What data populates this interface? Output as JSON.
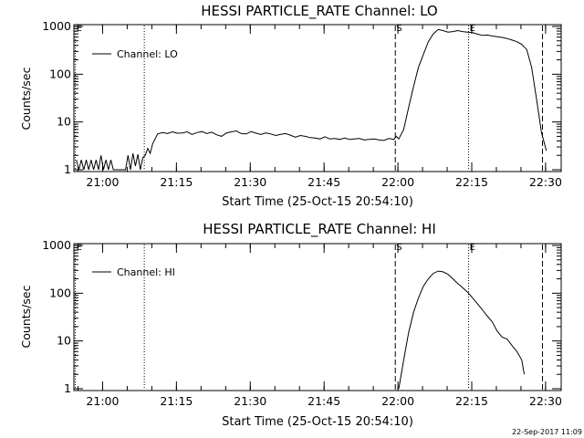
{
  "stamp": "22-Sep-2017 11:09",
  "chart_data": [
    {
      "type": "line",
      "title": "HESSI PARTICLE_RATE Channel: LO",
      "xlabel": "Start Time (25-Oct-15 20:54:10)",
      "ylabel": "Counts/sec",
      "yscale": "log",
      "ylim": [
        1,
        1000
      ],
      "xlim_minutes": [
        0,
        99
      ],
      "x_unit": "minutes after 20:54:10",
      "xticks": [
        {
          "minutes": 5.83,
          "label": "21:00"
        },
        {
          "minutes": 20.83,
          "label": "21:15"
        },
        {
          "minutes": 35.83,
          "label": "21:30"
        },
        {
          "minutes": 50.83,
          "label": "21:45"
        },
        {
          "minutes": 65.83,
          "label": "22:00"
        },
        {
          "minutes": 80.83,
          "label": "22:15"
        },
        {
          "minutes": 95.83,
          "label": "22:30"
        }
      ],
      "yticks": [
        {
          "value": 1,
          "label": "1"
        },
        {
          "value": 10,
          "label": "10"
        },
        {
          "value": 100,
          "label": "100"
        },
        {
          "value": 1000,
          "label": "1000"
        }
      ],
      "legend": {
        "label": "Channel: LO",
        "placement": "top-left"
      },
      "markers": [
        {
          "minutes": 0.3,
          "style": "dotted",
          "label": "E"
        },
        {
          "minutes": 14.3,
          "style": "dotted",
          "label": ""
        },
        {
          "minutes": 65.3,
          "style": "dashed",
          "label": "S"
        },
        {
          "minutes": 80.2,
          "style": "dotted",
          "label": "E"
        },
        {
          "minutes": 95.2,
          "style": "dashed",
          "label": ""
        }
      ],
      "series": [
        {
          "x": [
            0.5,
            1.0,
            1.5,
            2.0,
            2.5,
            3.0,
            3.5,
            4.0,
            4.5,
            5.0,
            5.5,
            6.0,
            6.5,
            7.0,
            7.5,
            8.0,
            8.5,
            9.0,
            9.5,
            10.0,
            10.5,
            11.0,
            11.5,
            12.0,
            12.5,
            13.0,
            13.5,
            14.0,
            14.5,
            15.0,
            15.5,
            16.0,
            17,
            18,
            19,
            20,
            21,
            22,
            23,
            24,
            25,
            26,
            27,
            28,
            29,
            30,
            31,
            32,
            33,
            34,
            35,
            36,
            37,
            38,
            39,
            40,
            41,
            42,
            43,
            44,
            45,
            46,
            47,
            48,
            49,
            50,
            51,
            52,
            53,
            54,
            55,
            56,
            57,
            58,
            59,
            60,
            61,
            62,
            63,
            64,
            65,
            65.5,
            66,
            67,
            68,
            69,
            70,
            71,
            72,
            73,
            74,
            75,
            76,
            77,
            78,
            79,
            80,
            81,
            82,
            83,
            84,
            85,
            86,
            87,
            88,
            89,
            90,
            91,
            92,
            93,
            94,
            95,
            96
          ],
          "y": [
            1.6,
            1.0,
            1.6,
            1.0,
            1.6,
            1.0,
            1.6,
            1.0,
            1.6,
            1.0,
            2.0,
            1.0,
            1.6,
            1.0,
            1.6,
            1.0,
            1.0,
            1.0,
            1.0,
            1.0,
            1.0,
            2.0,
            1.0,
            2.2,
            1.2,
            2.1,
            1.0,
            1.8,
            2.0,
            2.8,
            2.2,
            3.5,
            5.6,
            6.0,
            5.7,
            6.2,
            5.8,
            5.9,
            6.2,
            5.5,
            6.0,
            6.3,
            5.7,
            6.1,
            5.4,
            5.0,
            5.9,
            6.2,
            6.5,
            5.7,
            5.6,
            6.3,
            5.8,
            5.5,
            5.9,
            5.6,
            5.2,
            5.5,
            5.7,
            5.3,
            4.8,
            5.2,
            5.0,
            4.7,
            4.6,
            4.4,
            4.9,
            4.4,
            4.5,
            4.3,
            4.6,
            4.3,
            4.4,
            4.5,
            4.2,
            4.3,
            4.4,
            4.2,
            4.1,
            4.5,
            4.3,
            5.0,
            4.4,
            7.0,
            20,
            55,
            140,
            260,
            480,
            700,
            860,
            820,
            760,
            780,
            820,
            780,
            760,
            740,
            690,
            650,
            660,
            630,
            610,
            590,
            560,
            520,
            480,
            420,
            330,
            140,
            30,
            6,
            2.5
          ]
        }
      ]
    },
    {
      "type": "line",
      "title": "HESSI PARTICLE_RATE Channel: HI",
      "xlabel": "Start Time (25-Oct-15 20:54:10)",
      "ylabel": "Counts/sec",
      "yscale": "log",
      "ylim": [
        1,
        1000
      ],
      "xlim_minutes": [
        0,
        99
      ],
      "x_unit": "minutes after 20:54:10",
      "xticks": [
        {
          "minutes": 5.83,
          "label": "21:00"
        },
        {
          "minutes": 20.83,
          "label": "21:15"
        },
        {
          "minutes": 35.83,
          "label": "21:30"
        },
        {
          "minutes": 50.83,
          "label": "21:45"
        },
        {
          "minutes": 65.83,
          "label": "22:00"
        },
        {
          "minutes": 80.83,
          "label": "22:15"
        },
        {
          "minutes": 95.83,
          "label": "22:30"
        }
      ],
      "yticks": [
        {
          "value": 1,
          "label": "1"
        },
        {
          "value": 10,
          "label": "10"
        },
        {
          "value": 100,
          "label": "100"
        },
        {
          "value": 1000,
          "label": "1000"
        }
      ],
      "legend": {
        "label": "Channel: HI",
        "placement": "top-left"
      },
      "markers": [
        {
          "minutes": 0.3,
          "style": "dotted",
          "label": "E"
        },
        {
          "minutes": 14.3,
          "style": "dotted",
          "label": ""
        },
        {
          "minutes": 65.3,
          "style": "dashed",
          "label": "S"
        },
        {
          "minutes": 80.2,
          "style": "dotted",
          "label": "E"
        },
        {
          "minutes": 95.2,
          "style": "dashed",
          "label": ""
        }
      ],
      "series": [
        {
          "x": [
            66.0,
            67,
            68,
            69,
            70,
            71,
            72,
            73,
            74,
            75,
            76,
            77,
            78,
            79,
            80,
            81,
            82,
            83,
            84,
            85,
            86,
            87,
            88,
            89,
            90,
            91,
            91.5
          ],
          "y": [
            1.0,
            4,
            15,
            40,
            80,
            140,
            200,
            260,
            290,
            280,
            250,
            200,
            160,
            130,
            105,
            80,
            60,
            45,
            33,
            25,
            16,
            12,
            11,
            8,
            6,
            4,
            2
          ]
        }
      ]
    }
  ]
}
